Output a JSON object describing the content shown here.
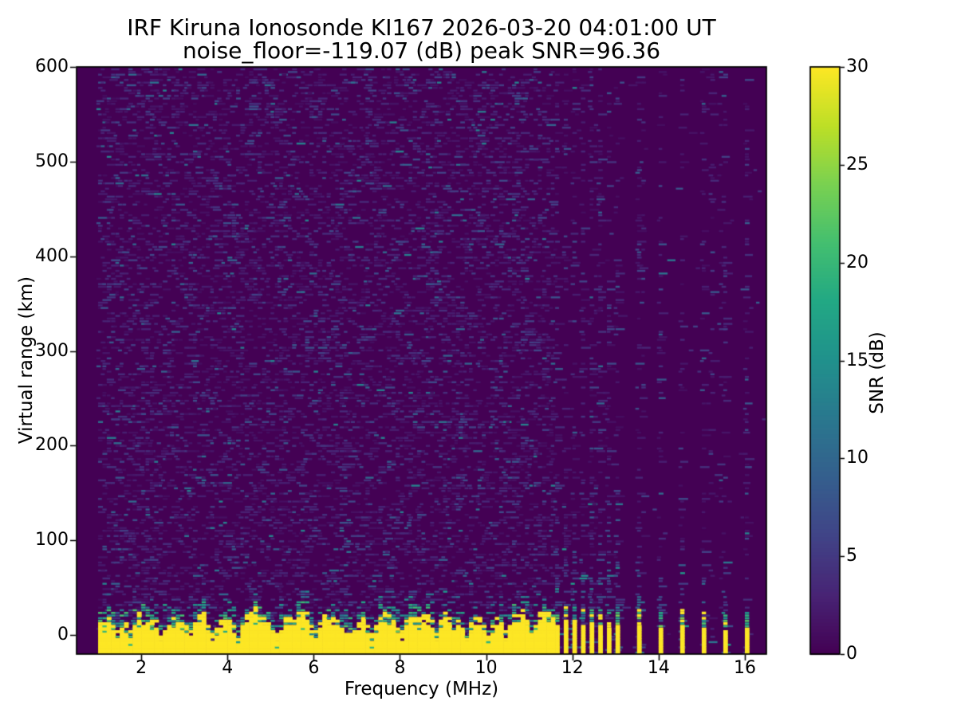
{
  "figure": {
    "title_line1": "IRF Kiruna Ionosonde KI167 2026-03-20 04:01:00  UT",
    "title_line2": "noise_floor=-119.07 (dB) peak SNR=96.36"
  },
  "chart_data": {
    "type": "heatmap",
    "title_line1": "IRF Kiruna Ionosonde KI167 2026-03-20 04:01:00  UT",
    "title_line2": "noise_floor=-119.07 (dB) peak SNR=96.36",
    "station": "IRF Kiruna Ionosonde KI167",
    "timestamp_ut": "2026-03-20 04:01:00",
    "noise_floor_db": -119.07,
    "peak_snr_db": 96.36,
    "xlabel": "Frequency (MHz)",
    "ylabel": "Virtual range (km)",
    "colorbar_label": "SNR (dB)",
    "colormap": "viridis",
    "xlim": [
      0.5,
      16.5
    ],
    "ylim": [
      -20,
      600
    ],
    "clim": [
      0,
      30
    ],
    "x_ticks": [
      2,
      4,
      6,
      8,
      10,
      12,
      14,
      16
    ],
    "y_ticks": [
      0,
      100,
      200,
      300,
      400,
      500,
      600
    ],
    "colorbar_ticks": [
      0,
      5,
      10,
      15,
      20,
      25,
      30
    ],
    "grid": false,
    "legend": "colorbar-right",
    "viridis_stops": [
      "#440154",
      "#482475",
      "#414487",
      "#355f8d",
      "#2a788e",
      "#21918c",
      "#22a884",
      "#44bf70",
      "#7ad151",
      "#bddf26",
      "#fde725"
    ],
    "features": {
      "data_f_start_mhz": 1.0,
      "ground_echo_band": {
        "f_start_mhz": 1.0,
        "f_end_mhz": 11.63,
        "snr_db": 30,
        "solid_top_km_range": [
          10,
          32
        ],
        "mixed_top_extent_km": 22,
        "notch_freqs_mhz": [
          1.45,
          1.74,
          2.45,
          3.13,
          3.68,
          4.3,
          5.17,
          6.05,
          6.95,
          7.35,
          8.1,
          8.8,
          9.6,
          10.0,
          10.45,
          11.1
        ]
      },
      "rfi_stripe_group_mhz": [
        11.69,
        11.88,
        12.08,
        12.27,
        12.46,
        12.66,
        12.85,
        13.04
      ],
      "rfi_isolated_stripes_mhz": [
        13.5,
        14.0,
        14.5,
        15.0,
        15.5,
        16.0
      ],
      "background_noise": {
        "snr_range_db": [
          1,
          13
        ],
        "left_region_density": 0.3,
        "right_region_base_density": 0.008,
        "right_region_column_density": 0.3,
        "stripe_column_density": 0.25
      }
    }
  }
}
